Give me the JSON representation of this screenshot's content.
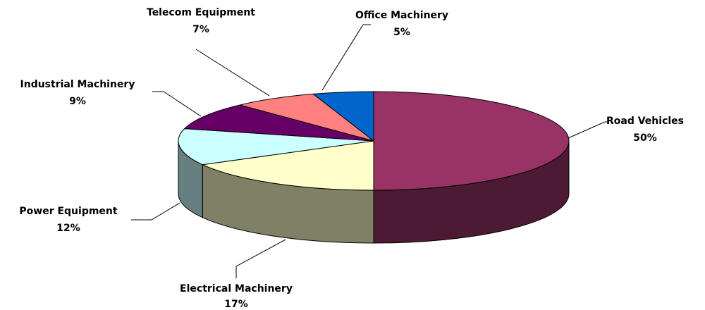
{
  "chart_data": {
    "type": "pie3d",
    "categories": [
      "Road Vehicles",
      "Electrical Machinery",
      "Power Equipment",
      "Industrial Machinery",
      "Telecom Equipment",
      "Office Machinery"
    ],
    "values": [
      50,
      17,
      12,
      9,
      7,
      5
    ],
    "value_labels": [
      "50%",
      "17%",
      "12%",
      "9%",
      "7%",
      "5%"
    ],
    "colors": [
      "#993366",
      "#ffffcc",
      "#ccffff",
      "#660066",
      "#ff8080",
      "#0066cc"
    ]
  }
}
